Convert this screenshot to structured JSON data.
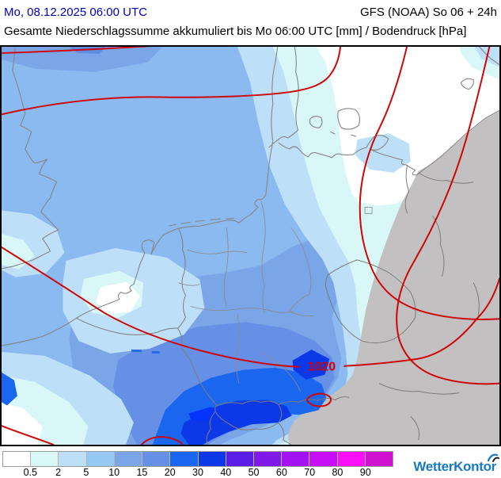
{
  "header": {
    "datetime": "Mo, 08.12.2025 06:00 UTC",
    "model": "GFS (NOAA) So 06 + 24h",
    "title": "Gesamte Niederschlagssumme akkumuliert bis Mo 06:00 UTC [mm] / Bodendruck [hPa]"
  },
  "map": {
    "pressure_label": "1020"
  },
  "legend": {
    "values": [
      "0.5",
      "2",
      "5",
      "10",
      "15",
      "20",
      "30",
      "40",
      "50",
      "60",
      "70",
      "80",
      "90"
    ],
    "colors": [
      "#ffffff",
      "#d9f7f7",
      "#bedff8",
      "#96c8f4",
      "#7aa6e8",
      "#6590e6",
      "#1a66ee",
      "#0c38e8",
      "#5a1ee6",
      "#801ae8",
      "#a312f0",
      "#c70ff5",
      "#f70ff7",
      "#cf12cf"
    ]
  },
  "branding": {
    "logo_text": "WetterKontor"
  },
  "colors": {
    "header_date": "#0000bb",
    "isobar": "#cf0606",
    "pressure_text": "#d40000",
    "coastline": "#858585",
    "nodata_gray": "#c2c0c0",
    "map_base": "#8abaf0"
  }
}
